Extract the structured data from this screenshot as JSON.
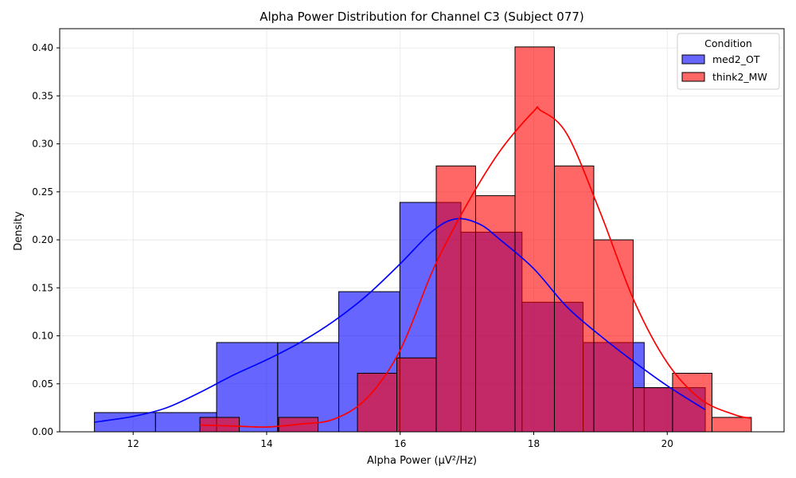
{
  "chart_data": {
    "type": "bar",
    "title": "Alpha Power Distribution for Channel C3 (Subject 077)",
    "xlabel": "Alpha Power (µV²/Hz)",
    "ylabel": "Density",
    "xlim": [
      10.9,
      21.75
    ],
    "ylim": [
      0,
      0.42
    ],
    "xticks": [
      12,
      14,
      16,
      18,
      20
    ],
    "yticks": [
      0.0,
      0.05,
      0.1,
      0.15,
      0.2,
      0.25,
      0.3,
      0.35,
      0.4
    ],
    "grid": true,
    "legend": {
      "title": "Condition",
      "placement": "top-right"
    },
    "series": [
      {
        "name": "med2_OT",
        "color": "#0000ff",
        "bin_edges": [
          11.42,
          12.335,
          13.25,
          14.165,
          15.08,
          15.995,
          16.91,
          17.825,
          18.74,
          19.655,
          20.57
        ],
        "densities": [
          0.02,
          0.02,
          0.093,
          0.093,
          0.146,
          0.239,
          0.208,
          0.135,
          0.093,
          0.046
        ],
        "kde": {
          "x": [
            11.42,
            12.0,
            12.5,
            13.0,
            13.5,
            14.0,
            14.5,
            15.0,
            15.5,
            16.0,
            16.5,
            16.85,
            17.2,
            17.5,
            18.0,
            18.5,
            19.0,
            19.5,
            20.0,
            20.57
          ],
          "y": [
            0.01,
            0.016,
            0.025,
            0.041,
            0.059,
            0.075,
            0.093,
            0.115,
            0.142,
            0.175,
            0.21,
            0.222,
            0.216,
            0.2,
            0.17,
            0.13,
            0.1,
            0.073,
            0.048,
            0.023
          ]
        }
      },
      {
        "name": "think2_MW",
        "color": "#ff0000",
        "bin_edges": [
          13.0,
          13.59,
          14.18,
          14.77,
          15.36,
          15.95,
          16.54,
          17.13,
          17.72,
          18.31,
          18.9,
          19.49,
          20.08,
          20.67,
          21.26
        ],
        "densities": [
          0.015,
          0.0,
          0.015,
          0.0,
          0.061,
          0.077,
          0.277,
          0.246,
          0.401,
          0.277,
          0.2,
          0.046,
          0.061,
          0.015
        ],
        "kde": {
          "x": [
            13.0,
            13.5,
            14.0,
            14.5,
            15.0,
            15.5,
            16.0,
            16.5,
            17.0,
            17.5,
            18.0,
            18.1,
            18.5,
            19.0,
            19.5,
            20.0,
            20.5,
            21.0,
            21.26
          ],
          "y": [
            0.007,
            0.006,
            0.005,
            0.008,
            0.013,
            0.035,
            0.085,
            0.17,
            0.237,
            0.293,
            0.334,
            0.335,
            0.31,
            0.228,
            0.137,
            0.072,
            0.034,
            0.018,
            0.014
          ]
        }
      }
    ]
  }
}
